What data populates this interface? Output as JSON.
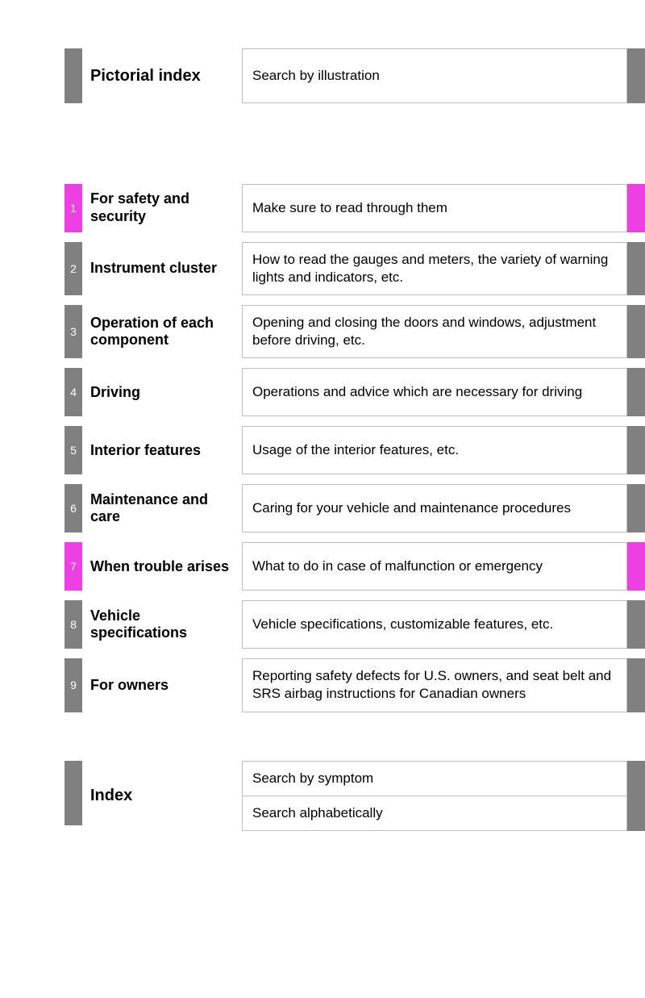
{
  "colors": {
    "gray": "#808080",
    "magenta": "#ee3fe2",
    "border": "#bfbfbf",
    "text": "#000000",
    "tab_text": "#ffffff"
  },
  "topSection": {
    "title": "Pictorial index",
    "description": "Search by illustration"
  },
  "chapters": [
    {
      "num": "1",
      "title": "For safety and security",
      "description": "Make sure to read through them",
      "color": "magenta"
    },
    {
      "num": "2",
      "title": "Instrument cluster",
      "description": "How to read the gauges and meters, the variety of warning lights and indicators, etc.",
      "color": "gray"
    },
    {
      "num": "3",
      "title": "Operation of each component",
      "description": "Opening and closing the doors and windows, adjustment before driving, etc.",
      "color": "gray"
    },
    {
      "num": "4",
      "title": "Driving",
      "description": "Operations and advice which are necessary for driving",
      "color": "gray"
    },
    {
      "num": "5",
      "title": "Interior features",
      "description": "Usage of the interior features, etc.",
      "color": "gray"
    },
    {
      "num": "6",
      "title": "Maintenance and care",
      "description": "Caring for your vehicle and maintenance procedures",
      "color": "gray"
    },
    {
      "num": "7",
      "title": "When trouble arises",
      "description": "What to do in case of malfunction or emergency",
      "color": "magenta"
    },
    {
      "num": "8",
      "title": "Vehicle specifications",
      "description": "Vehicle specifications, customizable features, etc.",
      "color": "gray"
    },
    {
      "num": "9",
      "title": "For owners",
      "description": "Reporting safety defects for U.S. owners, and seat belt and SRS airbag instructions for Canadian owners",
      "color": "gray"
    }
  ],
  "indexSection": {
    "title": "Index",
    "items": [
      "Search by symptom",
      "Search alphabetically"
    ]
  }
}
